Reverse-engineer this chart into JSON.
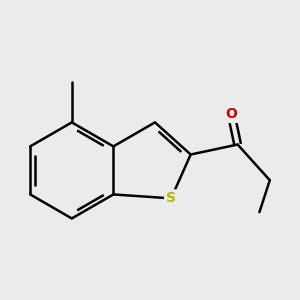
{
  "background_color": "#ebebeb",
  "bond_color": "#000000",
  "sulfur_color": "#b8b800",
  "oxygen_color": "#cc0000",
  "bond_width": 1.8,
  "figsize": [
    3.0,
    3.0
  ],
  "dpi": 100
}
